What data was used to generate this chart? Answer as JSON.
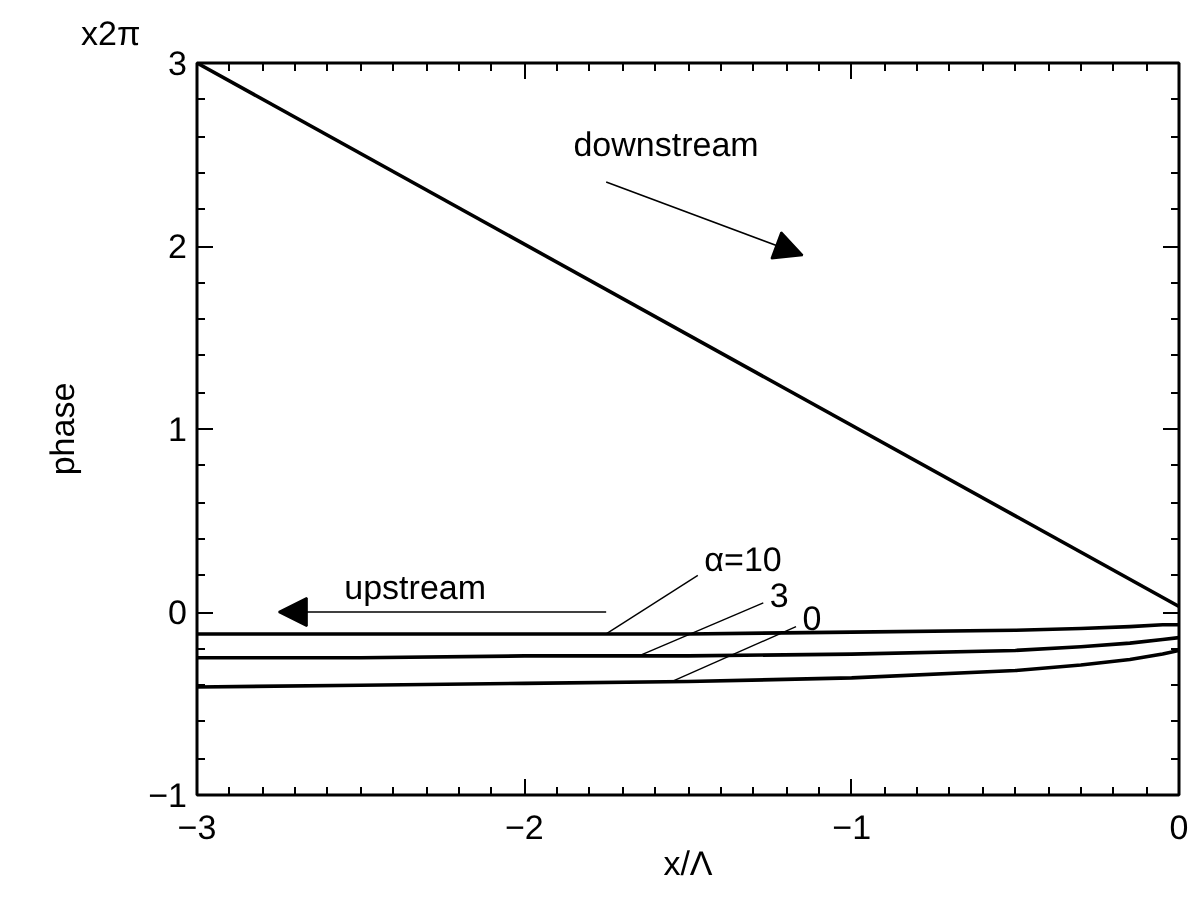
{
  "chart_data": {
    "type": "line",
    "xlabel": "x/Λ",
    "ylabel": "phase",
    "y2label": "x2π",
    "xlim": [
      -3,
      0
    ],
    "ylim": [
      -1,
      3
    ],
    "xticks": [
      -3,
      -2,
      -1,
      0
    ],
    "yticks": [
      -1,
      0,
      1,
      2,
      3
    ],
    "grid": false,
    "marker": "none",
    "line_style": "solid",
    "annotations": [
      "downstream",
      "upstream"
    ],
    "series": [
      {
        "color": "#000000",
        "x": [
          -3,
          0
        ],
        "values": [
          3,
          0.03
        ]
      },
      {
        "name": "α=10",
        "color": "#000000",
        "x": [
          -3,
          -2.5,
          -2,
          -1.5,
          -1,
          -0.5,
          -0.3,
          -0.15,
          -0.05,
          0
        ],
        "values": [
          -0.12,
          -0.12,
          -0.12,
          -0.12,
          -0.11,
          -0.1,
          -0.09,
          -0.08,
          -0.07,
          -0.07
        ]
      },
      {
        "name": "3",
        "color": "#000000",
        "x": [
          -3,
          -2.5,
          -2,
          -1.5,
          -1,
          -0.5,
          -0.3,
          -0.15,
          -0.05,
          0
        ],
        "values": [
          -0.25,
          -0.25,
          -0.24,
          -0.24,
          -0.23,
          -0.21,
          -0.19,
          -0.17,
          -0.15,
          -0.14
        ]
      },
      {
        "name": "0",
        "color": "#000000",
        "x": [
          -3,
          -2.5,
          -2,
          -1.5,
          -1,
          -0.5,
          -0.3,
          -0.15,
          -0.05,
          0
        ],
        "values": [
          -0.41,
          -0.4,
          -0.39,
          -0.38,
          -0.36,
          -0.32,
          -0.29,
          -0.26,
          -0.23,
          -0.21
        ]
      }
    ]
  }
}
